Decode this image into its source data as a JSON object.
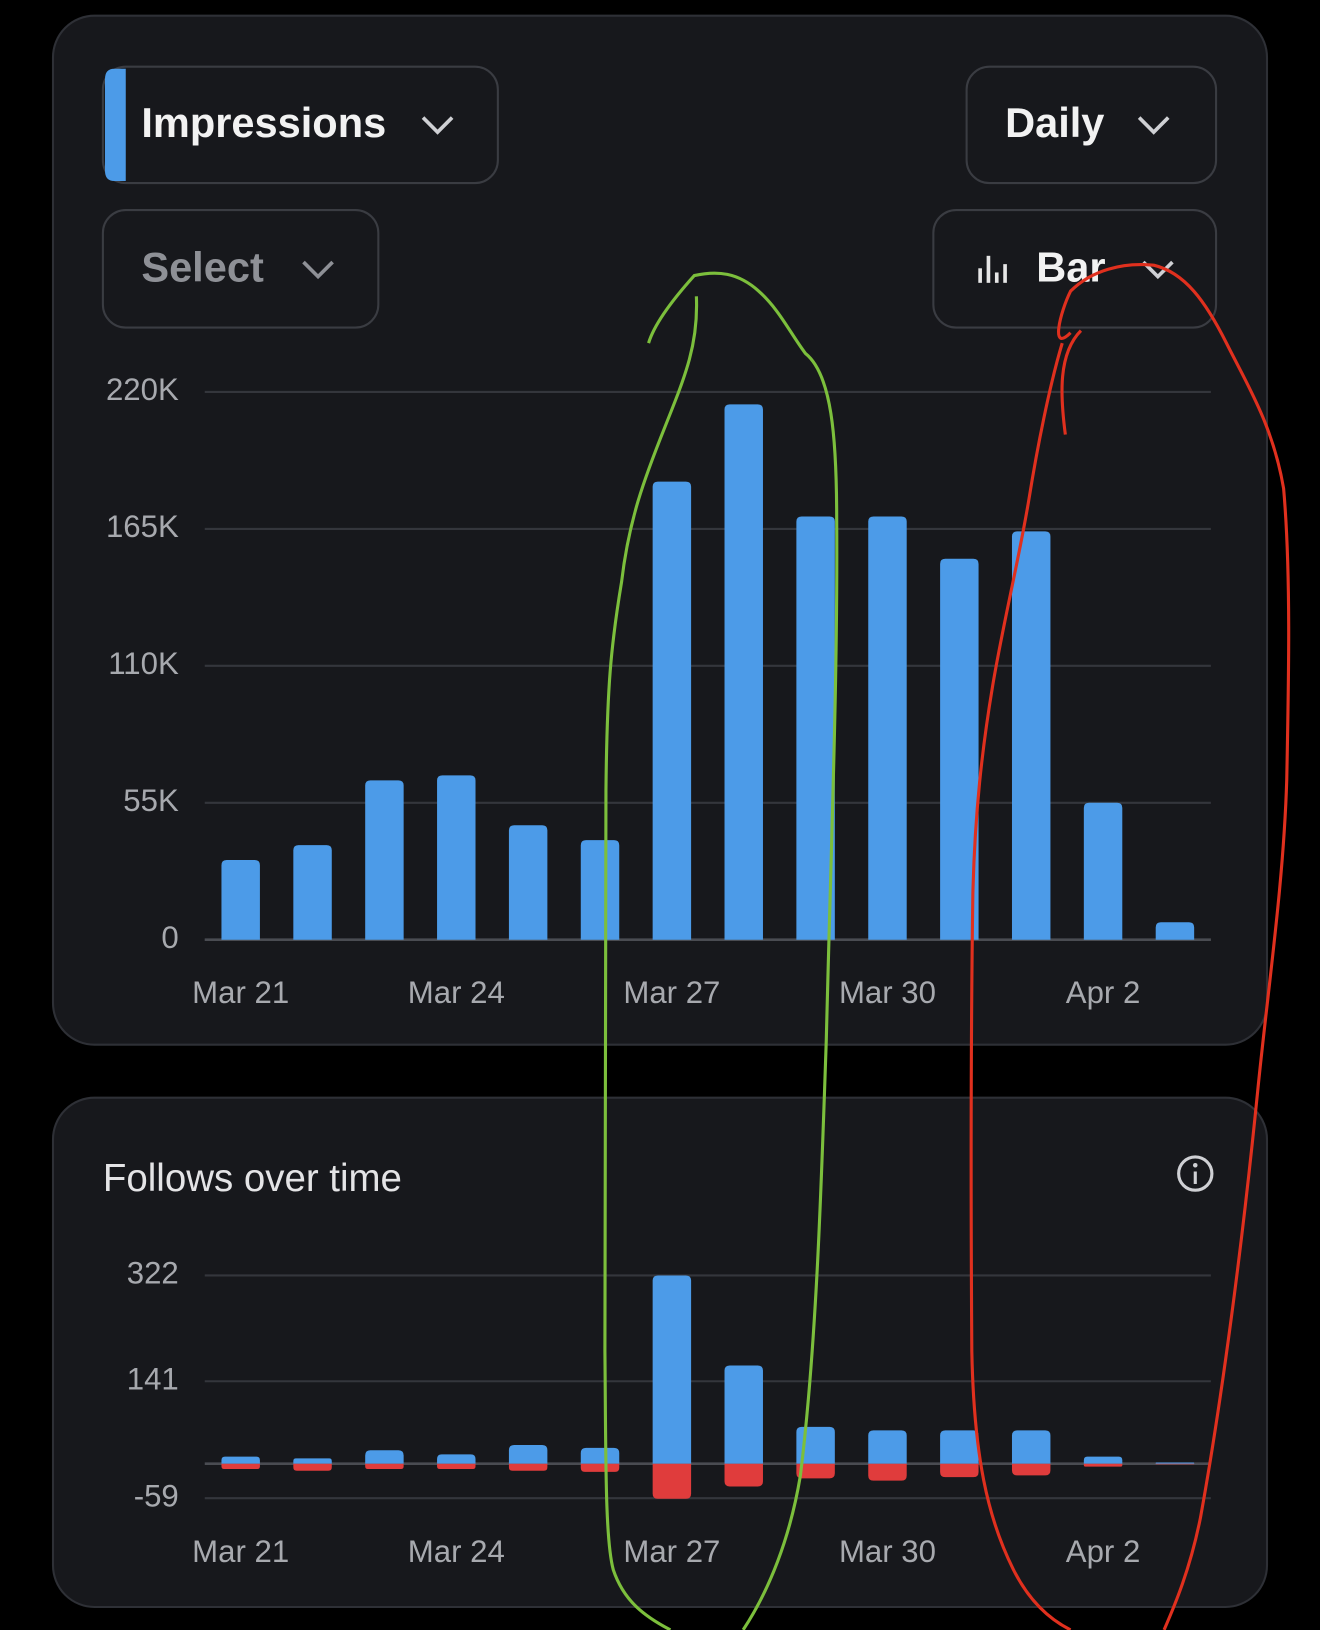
{
  "controls": {
    "metric": "Impressions",
    "interval": "Daily",
    "compare": "Select",
    "chart_style": "Bar"
  },
  "chart_data": [
    {
      "type": "bar",
      "categories": [
        "Mar 21",
        null,
        null,
        "Mar 24",
        null,
        null,
        "Mar 27",
        null,
        null,
        "Mar 30",
        null,
        null,
        "Apr 2",
        null
      ],
      "values": [
        32000,
        38000,
        64000,
        66000,
        46000,
        40000,
        184000,
        215000,
        170000,
        170000,
        153000,
        164000,
        55000,
        7000
      ],
      "color": "#4c9be8",
      "ylim": [
        0,
        220000
      ],
      "yticks": [
        {
          "value": 0,
          "label": "0"
        },
        {
          "value": 55000,
          "label": "55K"
        },
        {
          "value": 110000,
          "label": "110K"
        },
        {
          "value": 165000,
          "label": "165K"
        },
        {
          "value": 220000,
          "label": "220K"
        }
      ],
      "grid": true
    },
    {
      "type": "stacked-bar",
      "title": "Follows over time",
      "categories": [
        "Mar 21",
        null,
        null,
        "Mar 24",
        null,
        null,
        "Mar 27",
        null,
        null,
        "Mar 30",
        null,
        null,
        "Apr 2",
        null
      ],
      "series": [
        {
          "color": "#4c9be8",
          "values": [
            12,
            9,
            23,
            16,
            32,
            27,
            322,
            168,
            63,
            57,
            57,
            57,
            12,
            2
          ]
        },
        {
          "color": "#e03c3c",
          "values": [
            -9,
            -12,
            -9,
            -9,
            -12,
            -14,
            -60,
            -39,
            -25,
            -29,
            -23,
            -20,
            -5,
            -1
          ]
        }
      ],
      "ylim": [
        -62,
        322
      ],
      "yticks": [
        322,
        141,
        -59
      ],
      "grid": true
    }
  ]
}
